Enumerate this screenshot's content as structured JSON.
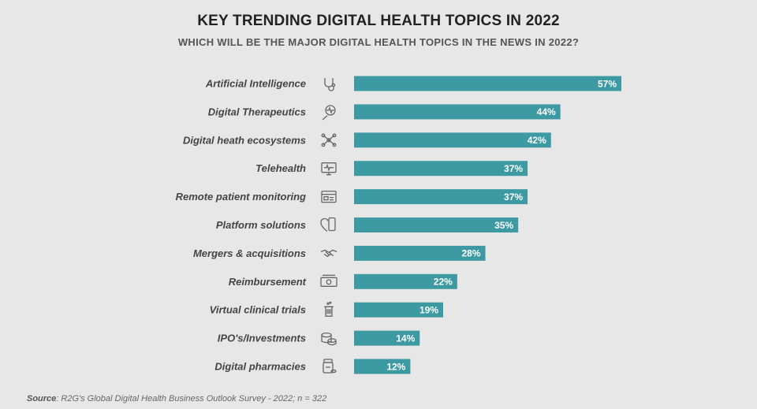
{
  "title": "KEY TRENDING DIGITAL HEALTH TOPICS IN 2022",
  "subtitle": "WHICH WILL BE THE MAJOR DIGITAL HEALTH TOPICS IN THE NEWS IN 2022?",
  "source": {
    "label": "Source",
    "text": ": R2G's Global Digital Health Business Outlook Survey - 2022; n = 322"
  },
  "colors": {
    "bar": "#3d9aa3",
    "background": "#e7e7e7"
  },
  "chart_data": {
    "type": "bar",
    "orientation": "horizontal",
    "title": "KEY TRENDING DIGITAL HEALTH TOPICS IN 2022",
    "subtitle": "WHICH WILL BE THE MAJOR DIGITAL HEALTH TOPICS IN THE NEWS IN 2022?",
    "categories": [
      "Artificial Intelligence",
      "Digital Therapeutics",
      "Digital heath ecosystems",
      "Telehealth",
      "Remote patient monitoring",
      "Platform solutions",
      "Mergers & acquisitions",
      "Reimbursement",
      "Virtual clinical trials",
      "IPO's/Investments",
      "Digital pharmacies"
    ],
    "values": [
      57,
      44,
      42,
      37,
      37,
      35,
      28,
      22,
      19,
      14,
      12
    ],
    "value_labels": [
      "57%",
      "44%",
      "42%",
      "37%",
      "37%",
      "35%",
      "28%",
      "22%",
      "19%",
      "14%",
      "12%"
    ],
    "icons": [
      "stethoscope-icon",
      "magnifier-heartbeat-icon",
      "network-nodes-icon",
      "telehealth-screen-icon",
      "monitor-window-icon",
      "heart-phone-icon",
      "handshake-icon",
      "money-bill-icon",
      "test-tube-icon",
      "coins-icon",
      "pill-bottle-icon"
    ],
    "unit": "%",
    "xlim": [
      0,
      60
    ],
    "grid": false,
    "legend": "none"
  }
}
